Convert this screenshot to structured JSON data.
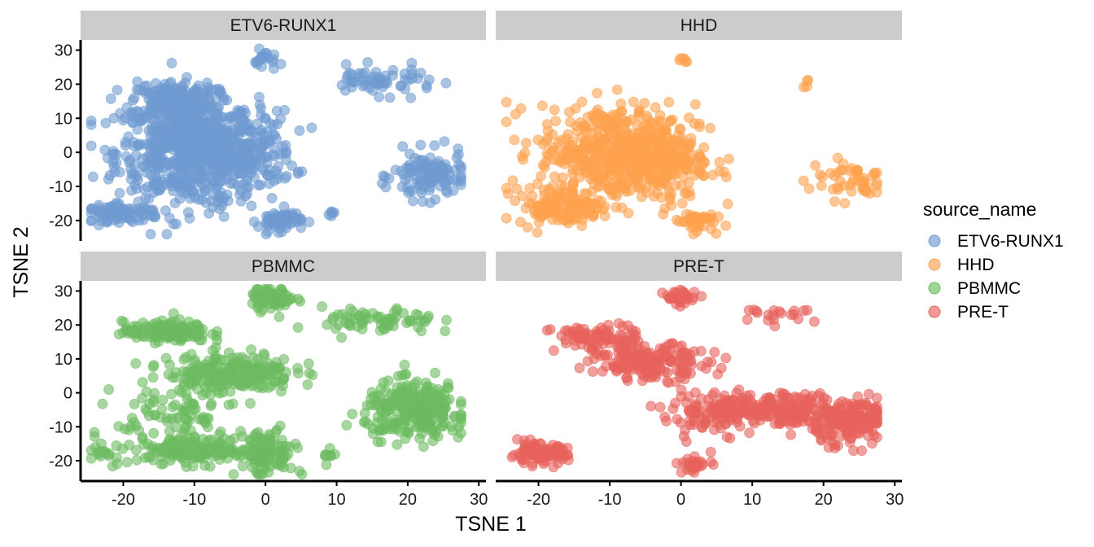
{
  "chart_data": {
    "type": "scatter",
    "facet_by": "source_name",
    "facets": [
      {
        "name": "ETV6-RUNX1",
        "color": "#6f9bd1",
        "clusters": [
          {
            "cx": -11,
            "cy": 0,
            "sx": 5.0,
            "sy": 8.0,
            "n": 600
          },
          {
            "cx": -13,
            "cy": 15,
            "sx": 3.0,
            "sy": 3.0,
            "n": 200
          },
          {
            "cx": -4,
            "cy": 0,
            "sx": 4.0,
            "sy": 6.0,
            "n": 250
          },
          {
            "cx": -20,
            "cy": -18,
            "sx": 2.5,
            "sy": 1.2,
            "n": 80
          },
          {
            "cx": 2,
            "cy": -20,
            "sx": 1.5,
            "sy": 1.5,
            "n": 60
          },
          {
            "cx": 0,
            "cy": 27,
            "sx": 0.8,
            "sy": 1.5,
            "n": 20
          },
          {
            "cx": 16,
            "cy": 21,
            "sx": 4.0,
            "sy": 2.0,
            "n": 60
          },
          {
            "cx": 23,
            "cy": -7,
            "sx": 2.5,
            "sy": 3.5,
            "n": 120
          },
          {
            "cx": 9,
            "cy": -18,
            "sx": 0.3,
            "sy": 0.4,
            "n": 6
          }
        ]
      },
      {
        "name": "HHD",
        "color": "#fda24f",
        "clusters": [
          {
            "cx": -9,
            "cy": 0,
            "sx": 5.5,
            "sy": 7.0,
            "n": 500
          },
          {
            "cx": -17,
            "cy": -16,
            "sx": 3.0,
            "sy": 2.5,
            "n": 120
          },
          {
            "cx": -3,
            "cy": -3,
            "sx": 3.0,
            "sy": 6.0,
            "n": 150
          },
          {
            "cx": 2,
            "cy": -20,
            "sx": 1.3,
            "sy": 1.5,
            "n": 40
          },
          {
            "cx": 0,
            "cy": 27,
            "sx": 0.6,
            "sy": 0.5,
            "n": 6
          },
          {
            "cx": 24,
            "cy": -8,
            "sx": 3.0,
            "sy": 3.0,
            "n": 50
          },
          {
            "cx": 17,
            "cy": 20,
            "sx": 1.0,
            "sy": 1.0,
            "n": 4
          }
        ]
      },
      {
        "name": "PBMMC",
        "color": "#6dbb60",
        "clusters": [
          {
            "cx": -14,
            "cy": 18,
            "sx": 3.0,
            "sy": 1.5,
            "n": 150
          },
          {
            "cx": -5,
            "cy": 6,
            "sx": 4.5,
            "sy": 3.0,
            "n": 220
          },
          {
            "cx": 1,
            "cy": 28,
            "sx": 1.5,
            "sy": 1.8,
            "n": 70
          },
          {
            "cx": 16,
            "cy": 21,
            "sx": 4.0,
            "sy": 2.0,
            "n": 70
          },
          {
            "cx": 21,
            "cy": -5,
            "sx": 3.5,
            "sy": 4.0,
            "n": 280
          },
          {
            "cx": -10,
            "cy": -17,
            "sx": 4.5,
            "sy": 2.0,
            "n": 150
          },
          {
            "cx": 0,
            "cy": -18,
            "sx": 2.0,
            "sy": 3.5,
            "n": 110
          },
          {
            "cx": -13,
            "cy": -7,
            "sx": 4.0,
            "sy": 5.0,
            "n": 80
          },
          {
            "cx": -23,
            "cy": -18,
            "sx": 1.5,
            "sy": 2.0,
            "n": 15
          },
          {
            "cx": 9,
            "cy": -18,
            "sx": 0.3,
            "sy": 0.6,
            "n": 8
          }
        ]
      },
      {
        "name": "PRE-T",
        "color": "#e8635c",
        "clusters": [
          {
            "cx": -12,
            "cy": 16,
            "sx": 3.0,
            "sy": 2.0,
            "n": 90
          },
          {
            "cx": -4,
            "cy": 9,
            "sx": 4.0,
            "sy": 2.5,
            "n": 170
          },
          {
            "cx": 0,
            "cy": 28,
            "sx": 1.2,
            "sy": 1.2,
            "n": 35
          },
          {
            "cx": 14,
            "cy": -5,
            "sx": 7.0,
            "sy": 2.5,
            "n": 300
          },
          {
            "cx": 23,
            "cy": -10,
            "sx": 3.0,
            "sy": 3.0,
            "n": 100
          },
          {
            "cx": -20,
            "cy": -18,
            "sx": 2.0,
            "sy": 1.5,
            "n": 100
          },
          {
            "cx": 2,
            "cy": -21,
            "sx": 1.2,
            "sy": 1.0,
            "n": 30
          },
          {
            "cx": 14,
            "cy": 23,
            "sx": 2.5,
            "sy": 1.0,
            "n": 20
          },
          {
            "cx": 3,
            "cy": -7,
            "sx": 3.0,
            "sy": 4.0,
            "n": 40
          }
        ]
      }
    ],
    "xlabel": "TSNE 1",
    "ylabel": "TSNE 2",
    "xlim": [
      -26,
      31
    ],
    "ylim": [
      -26,
      33
    ],
    "xticks": [
      -20,
      -10,
      0,
      10,
      20,
      30
    ],
    "xtick_labels": [
      "-20",
      "-10",
      "0",
      "10",
      "20",
      "30"
    ],
    "yticks": [
      -20,
      -10,
      0,
      10,
      20,
      30
    ],
    "ytick_labels": [
      "-20",
      "-10",
      "0",
      "10",
      "20",
      "30"
    ],
    "legend": {
      "title": "source_name",
      "position": "right",
      "entries": [
        {
          "label": "ETV6-RUNX1",
          "color": "#6f9bd1"
        },
        {
          "label": "HHD",
          "color": "#fda24f"
        },
        {
          "label": "PBMMC",
          "color": "#6dbb60"
        },
        {
          "label": "PRE-T",
          "color": "#e8635c"
        }
      ]
    },
    "grid": false
  }
}
